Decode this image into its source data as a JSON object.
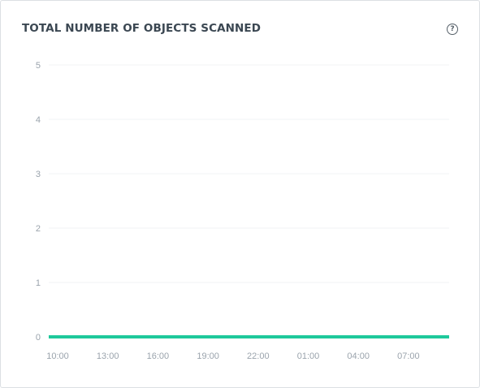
{
  "header": {
    "title": "TOTAL NUMBER OF OBJECTS SCANNED",
    "help_icon": "question-circle-icon",
    "help_glyph": "?"
  },
  "chart_data": {
    "type": "line",
    "title": "TOTAL NUMBER OF OBJECTS SCANNED",
    "xlabel": "",
    "ylabel": "",
    "grid": true,
    "ylim": [
      0,
      5
    ],
    "yticks": [
      "0",
      "1",
      "2",
      "3",
      "4",
      "5"
    ],
    "xticks": [
      "10:00",
      "13:00",
      "16:00",
      "19:00",
      "22:00",
      "01:00",
      "04:00",
      "07:00"
    ],
    "series": [
      {
        "color": "#1ec99b",
        "values": [
          0,
          0,
          0,
          0,
          0,
          0,
          0,
          0,
          0
        ]
      }
    ]
  }
}
